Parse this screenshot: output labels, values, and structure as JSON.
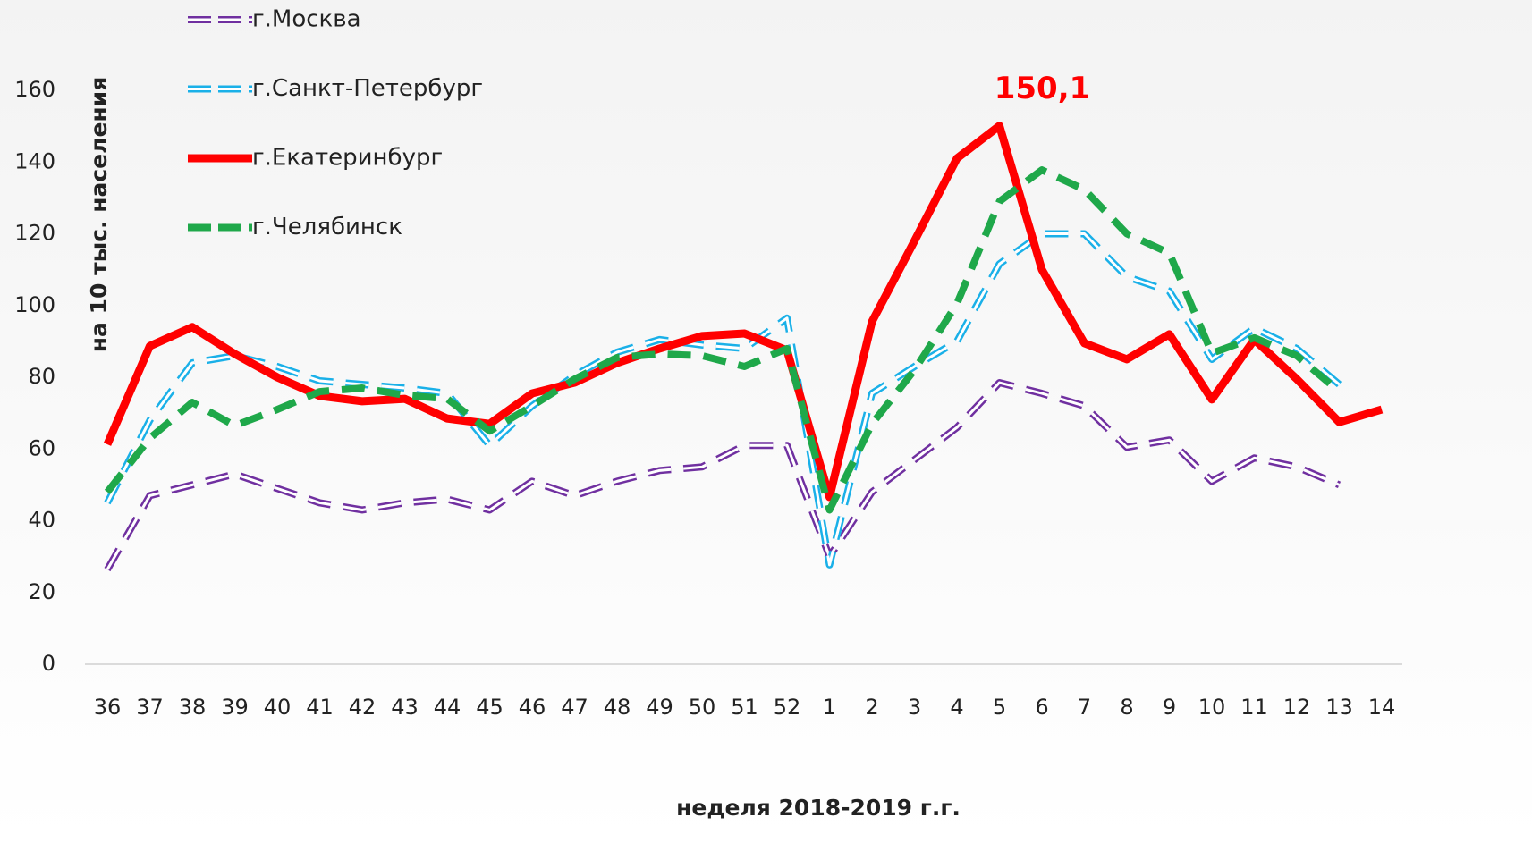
{
  "chart_data": {
    "type": "line",
    "categories": [
      "36",
      "37",
      "38",
      "39",
      "40",
      "41",
      "42",
      "43",
      "44",
      "45",
      "46",
      "47",
      "48",
      "49",
      "50",
      "51",
      "52",
      "1",
      "2",
      "3",
      "4",
      "5",
      "6",
      "7",
      "8",
      "9",
      "10",
      "11",
      "12",
      "13",
      "14"
    ],
    "ylim": [
      0,
      160
    ],
    "yticks": [
      0,
      20,
      40,
      60,
      80,
      100,
      120,
      140,
      160
    ],
    "grid": false,
    "y_label": "на 10 тыс. населения",
    "x_label": "неделя 2018-2019 г.г.",
    "legend": "upper-left",
    "series": [
      {
        "name": "г.Москва",
        "color": "#7030a0",
        "line_style": "double-dashed",
        "values": [
          26.4,
          47,
          50,
          53,
          49,
          45,
          43,
          45,
          46,
          43,
          51,
          47,
          51,
          54,
          55,
          61,
          61,
          30,
          48,
          57,
          66,
          78.5,
          75.5,
          72,
          60.5,
          62.5,
          51,
          57.5,
          55,
          50,
          null
        ]
      },
      {
        "name": "г.Санкт-Петербург",
        "color": "#1ab0e8",
        "line_style": "double-dashed",
        "values": [
          45,
          68,
          84,
          86,
          83,
          79,
          78,
          77,
          75.5,
          61,
          72,
          80.5,
          87,
          90.5,
          89,
          88,
          96.5,
          27.7,
          75.5,
          83,
          90,
          111.6,
          120,
          120,
          108,
          104,
          85,
          93.7,
          88,
          78,
          null
        ]
      },
      {
        "name": "г.Екатеринбург",
        "color": "#ff0000",
        "line_style": "solid",
        "values": [
          61.3,
          88.7,
          94,
          86.5,
          80,
          74.8,
          73.3,
          74,
          68.5,
          67,
          75.5,
          78.5,
          84,
          88,
          91.5,
          92.2,
          87.5,
          46.6,
          95.5,
          118,
          141,
          150.1,
          110,
          89.5,
          85,
          92,
          73.8,
          90.5,
          79.5,
          67.5,
          71
        ],
        "value_labels": [
          null,
          null,
          null,
          null,
          null,
          null,
          null,
          null,
          null,
          null,
          null,
          null,
          null,
          null,
          null,
          null,
          null,
          null,
          null,
          null,
          null,
          "150,1",
          null,
          null,
          null,
          null,
          null,
          null,
          null,
          null,
          null
        ]
      },
      {
        "name": "г.Челябинск",
        "color": "#1fa84a",
        "line_style": "dashed",
        "values": [
          48,
          63,
          73,
          66.5,
          71,
          76,
          77,
          75,
          74,
          65,
          72,
          79.5,
          85.5,
          86.5,
          86,
          83,
          88,
          43,
          67,
          82,
          100.5,
          129,
          137.8,
          132.3,
          120,
          114.6,
          86.7,
          91,
          86,
          76,
          null
        ]
      }
    ]
  }
}
